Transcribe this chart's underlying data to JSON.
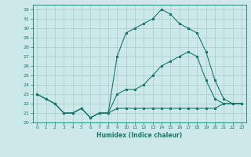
{
  "xlabel": "Humidex (Indice chaleur)",
  "x": [
    0,
    1,
    2,
    3,
    4,
    5,
    6,
    7,
    8,
    9,
    10,
    11,
    12,
    13,
    14,
    15,
    16,
    17,
    18,
    19,
    20,
    21,
    22,
    23
  ],
  "curve_min": [
    23,
    22.5,
    22,
    21,
    21,
    21.5,
    20.5,
    21,
    21,
    21.5,
    21.5,
    21.5,
    21.5,
    21.5,
    21.5,
    21.5,
    21.5,
    21.5,
    21.5,
    21.5,
    21.5,
    22,
    22,
    22
  ],
  "curve_mid": [
    23,
    22.5,
    22,
    21,
    21,
    21.5,
    20.5,
    21,
    21,
    23,
    23.5,
    23.5,
    24,
    25,
    26,
    26.5,
    27,
    27.5,
    27,
    24.5,
    22.5,
    22,
    22,
    22
  ],
  "curve_max": [
    23,
    22.5,
    22,
    21,
    21,
    21.5,
    20.5,
    21,
    21,
    27,
    29.5,
    30,
    30.5,
    31,
    32,
    31.5,
    30.5,
    30,
    29.5,
    27.5,
    24.5,
    22.5,
    22,
    22
  ],
  "color": "#1a7a6a",
  "bg_color": "#cce8e8",
  "ylim": [
    20,
    32.5
  ],
  "xlim": [
    -0.5,
    23.5
  ],
  "yticks": [
    20,
    21,
    22,
    23,
    24,
    25,
    26,
    27,
    28,
    29,
    30,
    31,
    32
  ],
  "xticks": [
    0,
    1,
    2,
    3,
    4,
    5,
    6,
    7,
    8,
    9,
    10,
    11,
    12,
    13,
    14,
    15,
    16,
    17,
    18,
    19,
    20,
    21,
    22,
    23
  ],
  "grid_color": "#aacccc",
  "linewidth": 0.8,
  "markersize": 2.0
}
